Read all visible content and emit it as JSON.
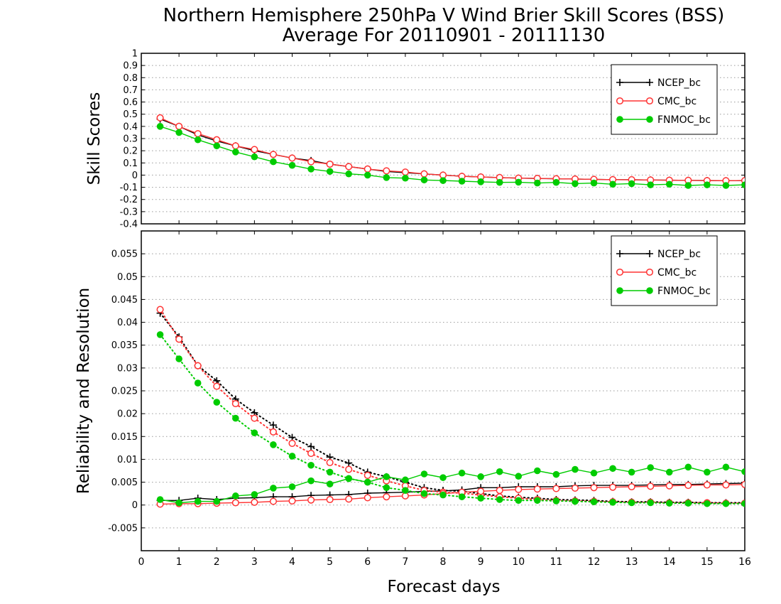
{
  "title": {
    "line1": "Northern Hemisphere 250hPa V Wind Brier Skill Scores (BSS)",
    "line2": "Average For 20110901 - 20111130"
  },
  "chart_data": [
    {
      "type": "line",
      "panel": "top",
      "ylabel": "Skill Scores",
      "xlim": [
        0,
        16
      ],
      "ylim": [
        -0.4,
        1
      ],
      "ytick_labels": [
        "-0.4",
        "-0.3",
        "-0.2",
        "-0.1",
        "0",
        "0.1",
        "0.2",
        "0.3",
        "0.4",
        "0.5",
        "0.6",
        "0.7",
        "0.8",
        "0.9",
        "1"
      ],
      "grid": true,
      "legend_position": "top-right",
      "x": [
        0.5,
        1,
        1.5,
        2,
        2.5,
        3,
        3.5,
        4,
        4.5,
        5,
        5.5,
        6,
        6.5,
        7,
        7.5,
        8,
        8.5,
        9,
        9.5,
        10,
        10.5,
        11,
        11.5,
        12,
        12.5,
        13,
        13.5,
        14,
        14.5,
        15,
        15.5,
        16
      ],
      "series": [
        {
          "name": "NCEP_bc",
          "color": "#000000",
          "marker": "plus",
          "values": [
            0.46,
            0.4,
            0.33,
            0.28,
            0.24,
            0.2,
            0.17,
            0.14,
            0.12,
            0.09,
            0.07,
            0.05,
            0.03,
            0.02,
            0.01,
            0.0,
            -0.01,
            -0.015,
            -0.02,
            -0.025,
            -0.028,
            -0.03,
            -0.032,
            -0.035,
            -0.037,
            -0.038,
            -0.04,
            -0.042,
            -0.043,
            -0.045,
            -0.046,
            -0.045
          ]
        },
        {
          "name": "CMC_bc",
          "color": "#ff3333",
          "marker": "open-circle",
          "values": [
            0.47,
            0.4,
            0.34,
            0.29,
            0.24,
            0.21,
            0.17,
            0.14,
            0.11,
            0.09,
            0.07,
            0.05,
            0.035,
            0.025,
            0.01,
            0.0,
            -0.01,
            -0.015,
            -0.02,
            -0.025,
            -0.027,
            -0.03,
            -0.032,
            -0.035,
            -0.037,
            -0.038,
            -0.04,
            -0.042,
            -0.043,
            -0.045,
            -0.046,
            -0.045
          ]
        },
        {
          "name": "FNMOC_bc",
          "color": "#00cc00",
          "marker": "filled-circle",
          "values": [
            0.4,
            0.35,
            0.29,
            0.24,
            0.19,
            0.15,
            0.11,
            0.08,
            0.05,
            0.03,
            0.01,
            0.0,
            -0.02,
            -0.025,
            -0.04,
            -0.045,
            -0.05,
            -0.055,
            -0.06,
            -0.058,
            -0.065,
            -0.06,
            -0.07,
            -0.065,
            -0.075,
            -0.07,
            -0.08,
            -0.075,
            -0.085,
            -0.08,
            -0.085,
            -0.08
          ]
        }
      ]
    },
    {
      "type": "line",
      "panel": "bottom",
      "ylabel": "Reliability and Resolution",
      "xlabel": "Forecast days",
      "xlim": [
        0,
        16
      ],
      "ylim": [
        -0.01,
        0.06
      ],
      "ytick_labels": [
        "-0.005",
        "0",
        "0.005",
        "0.01",
        "0.015",
        "0.02",
        "0.025",
        "0.03",
        "0.035",
        "0.04",
        "0.045",
        "0.05",
        "0.055"
      ],
      "xtick_labels": [
        "0",
        "1",
        "2",
        "3",
        "4",
        "5",
        "6",
        "7",
        "8",
        "9",
        "10",
        "11",
        "12",
        "13",
        "14",
        "15",
        "16"
      ],
      "grid": true,
      "legend_position": "top-right",
      "x": [
        0.5,
        1,
        1.5,
        2,
        2.5,
        3,
        3.5,
        4,
        4.5,
        5,
        5.5,
        6,
        6.5,
        7,
        7.5,
        8,
        8.5,
        9,
        9.5,
        10,
        10.5,
        11,
        11.5,
        12,
        12.5,
        13,
        13.5,
        14,
        14.5,
        15,
        15.5,
        16
      ],
      "series": [
        {
          "name": "NCEP_bc",
          "color": "#000000",
          "marker": "plus",
          "line": "dotted",
          "values": [
            0.042,
            0.0368,
            0.0305,
            0.0272,
            0.0232,
            0.0202,
            0.0175,
            0.0148,
            0.0128,
            0.0105,
            0.0092,
            0.0072,
            0.0062,
            0.005,
            0.0038,
            0.0032,
            0.003,
            0.0025,
            0.002,
            0.0017,
            0.0015,
            0.0012,
            0.0011,
            0.001,
            0.0008,
            0.0007,
            0.0007,
            0.0006,
            0.0006,
            0.0005,
            0.0005,
            0.0005
          ]
        },
        {
          "name": "NCEP_bc",
          "color": "#000000",
          "marker": "plus",
          "line": "solid",
          "values": [
            0.001,
            0.001,
            0.0015,
            0.0012,
            0.0015,
            0.0016,
            0.0018,
            0.0018,
            0.0021,
            0.0022,
            0.0023,
            0.0026,
            0.0027,
            0.0028,
            0.003,
            0.0031,
            0.0033,
            0.0038,
            0.0038,
            0.004,
            0.004,
            0.004,
            0.0042,
            0.0043,
            0.0043,
            0.0043,
            0.0044,
            0.0045,
            0.0045,
            0.0046,
            0.0047,
            0.0048
          ]
        },
        {
          "name": "CMC_bc",
          "color": "#ff3333",
          "marker": "open-circle",
          "line": "dotted",
          "values": [
            0.0428,
            0.0363,
            0.0305,
            0.026,
            0.0222,
            0.019,
            0.016,
            0.0135,
            0.0113,
            0.0093,
            0.0078,
            0.0065,
            0.0053,
            0.0042,
            0.0032,
            0.0028,
            0.0026,
            0.0022,
            0.0018,
            0.0015,
            0.0012,
            0.001,
            0.0009,
            0.0008,
            0.0007,
            0.0006,
            0.0006,
            0.0005,
            0.0005,
            0.0005,
            0.0004,
            0.0004
          ]
        },
        {
          "name": "CMC_bc",
          "color": "#ff3333",
          "marker": "open-circle",
          "line": "solid",
          "values": [
            0.0002,
            0.0003,
            0.0003,
            0.0004,
            0.0005,
            0.0006,
            0.0008,
            0.0009,
            0.0011,
            0.0012,
            0.0013,
            0.0016,
            0.0018,
            0.002,
            0.0022,
            0.0025,
            0.0028,
            0.003,
            0.0032,
            0.0034,
            0.0035,
            0.0036,
            0.0037,
            0.0038,
            0.0039,
            0.004,
            0.0041,
            0.0042,
            0.0043,
            0.0044,
            0.0044,
            0.0045
          ]
        },
        {
          "name": "FNMOC_bc",
          "color": "#00cc00",
          "marker": "filled-circle",
          "line": "dotted",
          "values": [
            0.0373,
            0.032,
            0.0267,
            0.0225,
            0.019,
            0.0158,
            0.0132,
            0.0107,
            0.0087,
            0.0072,
            0.0058,
            0.005,
            0.0038,
            0.0032,
            0.0025,
            0.0022,
            0.0018,
            0.0015,
            0.0012,
            0.001,
            0.001,
            0.0009,
            0.0008,
            0.0007,
            0.0006,
            0.0005,
            0.0005,
            0.0004,
            0.0004,
            0.0003,
            0.0003,
            0.0003
          ]
        },
        {
          "name": "FNMOC_bc",
          "color": "#00cc00",
          "marker": "filled-circle",
          "line": "solid",
          "values": [
            0.0012,
            0.0005,
            0.0008,
            0.0008,
            0.002,
            0.0023,
            0.0037,
            0.004,
            0.0053,
            0.0046,
            0.0058,
            0.005,
            0.0062,
            0.0055,
            0.0068,
            0.006,
            0.007,
            0.0062,
            0.0073,
            0.0063,
            0.0075,
            0.0067,
            0.0078,
            0.007,
            0.008,
            0.0072,
            0.0082,
            0.0072,
            0.0083,
            0.0072,
            0.0083,
            0.0073
          ]
        }
      ]
    }
  ]
}
